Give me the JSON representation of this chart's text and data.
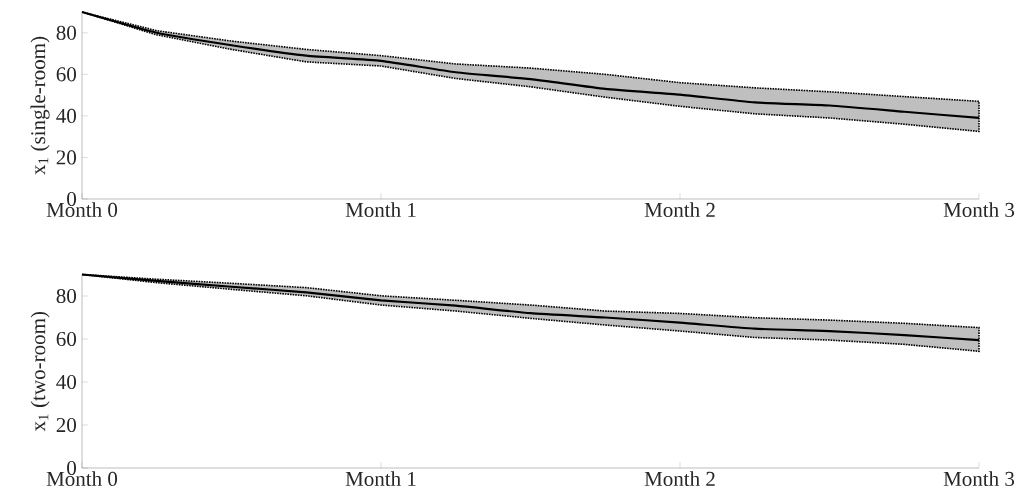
{
  "chart_data": [
    {
      "type": "line",
      "ylabel": "x$_{1}$ (single-room)",
      "ylim": [
        0,
        90
      ],
      "yticks": [
        0,
        20,
        40,
        60,
        80
      ],
      "categories": [
        "Month 0",
        null,
        null,
        null,
        "Month 1",
        null,
        null,
        null,
        "Month 2",
        null,
        null,
        null,
        "Month 3"
      ],
      "series": [
        {
          "color": "#000000",
          "values": [
            90,
            80,
            74,
            69,
            66.5,
            61,
            57.7,
            53,
            50.2,
            46.5,
            45,
            42,
            39
          ],
          "upper": [
            90,
            81,
            76,
            72,
            69,
            65,
            63,
            60,
            56,
            53.5,
            51.6,
            49.3,
            47
          ],
          "lower": [
            90,
            79,
            72,
            66,
            64,
            58,
            54,
            49,
            44.6,
            41,
            39,
            36,
            32.5
          ]
        }
      ]
    },
    {
      "type": "line",
      "ylabel": "x$_{1}$ (two-room)",
      "ylim": [
        0,
        90
      ],
      "yticks": [
        0,
        20,
        40,
        60,
        80
      ],
      "categories": [
        "Month 0",
        null,
        null,
        null,
        "Month 1",
        null,
        null,
        null,
        "Month 2",
        null,
        null,
        null,
        "Month 3"
      ],
      "series": [
        {
          "color": "#000000",
          "values": [
            90,
            87,
            84.3,
            81.7,
            78,
            75.5,
            72,
            70,
            67.6,
            64.8,
            63.7,
            61.8,
            59.5
          ],
          "upper": [
            90,
            87.8,
            85.9,
            83.9,
            80.1,
            78,
            75.8,
            73,
            71.9,
            69.9,
            68.8,
            67.3,
            65.3
          ],
          "lower": [
            90,
            86.2,
            83.1,
            80.1,
            75.8,
            73,
            69.6,
            66.5,
            63.7,
            60.7,
            59.5,
            57.5,
            54.3
          ]
        }
      ]
    }
  ]
}
